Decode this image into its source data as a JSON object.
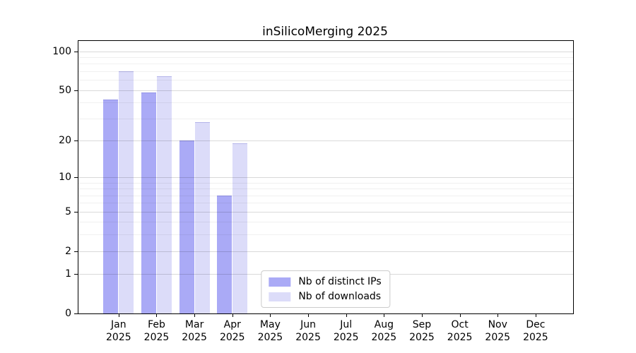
{
  "chart_data": {
    "type": "bar",
    "title": "inSilicoMerging 2025",
    "categories": [
      "Jan 2025",
      "Feb 2025",
      "Mar 2025",
      "Apr 2025",
      "May 2025",
      "Jun 2025",
      "Jul 2025",
      "Aug 2025",
      "Sep 2025",
      "Oct 2025",
      "Nov 2025",
      "Dec 2025"
    ],
    "series": [
      {
        "name": "Nb of distinct IPs",
        "color": "#aaaaf6",
        "values": [
          42,
          48,
          20,
          7,
          0,
          0,
          0,
          0,
          0,
          0,
          0,
          0
        ]
      },
      {
        "name": "Nb of downloads",
        "color": "#dcdcf9",
        "values": [
          70,
          64,
          28,
          19,
          0,
          0,
          0,
          0,
          0,
          0,
          0,
          0
        ]
      }
    ],
    "y_scale": "log1p",
    "ylim": [
      0,
      120
    ],
    "yticks": [
      0,
      1,
      2,
      5,
      10,
      20,
      50,
      100
    ],
    "minor_yticks": [
      3,
      4,
      6,
      7,
      8,
      9,
      30,
      40,
      60,
      70,
      80,
      90
    ],
    "grid": true,
    "legend_position": "lower center",
    "axis_color": "#000000",
    "major_grid_color": "#d9d9d9",
    "minor_grid_color": "#f0f0f0",
    "background_color": "#ffffff"
  }
}
